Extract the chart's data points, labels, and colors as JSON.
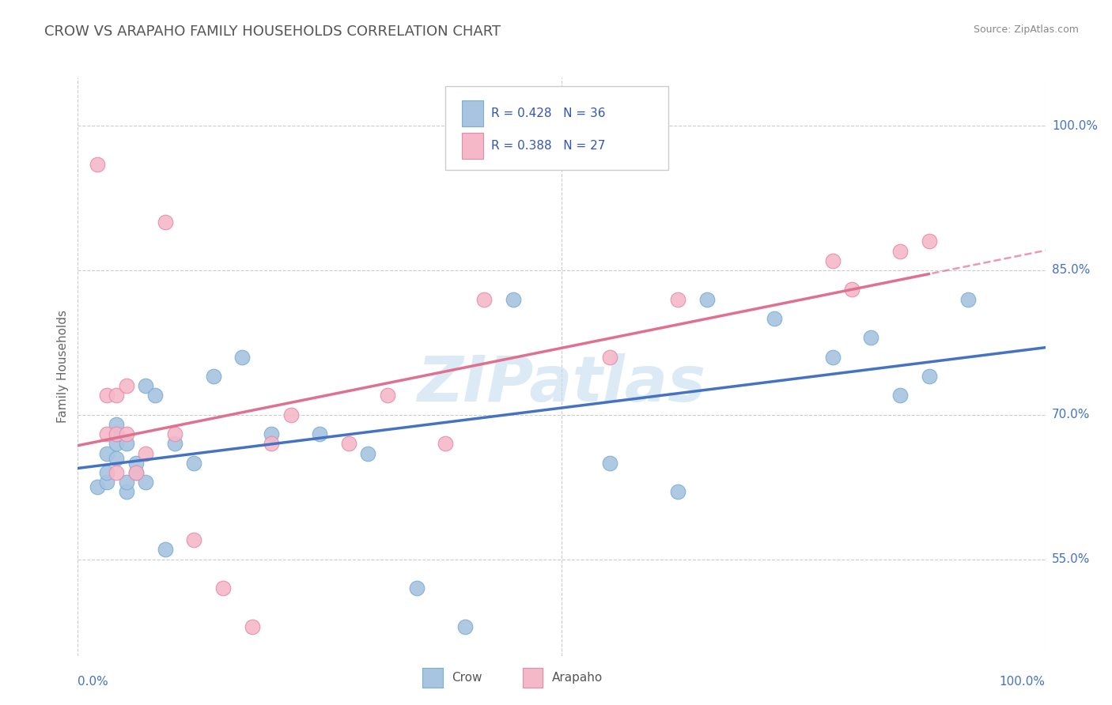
{
  "title": "CROW VS ARAPAHO FAMILY HOUSEHOLDS CORRELATION CHART",
  "source": "Source: ZipAtlas.com",
  "ylabel": "Family Households",
  "xlim": [
    0.0,
    1.0
  ],
  "ylim": [
    0.45,
    1.05
  ],
  "y_ticks": [
    0.55,
    0.7,
    0.85,
    1.0
  ],
  "y_tick_labels": [
    "55.0%",
    "70.0%",
    "85.0%",
    "100.0%"
  ],
  "x_tick_labels_pos": [
    0.0,
    1.0
  ],
  "x_tick_labels": [
    "0.0%",
    "100.0%"
  ],
  "crow_color": "#a8c4e0",
  "crow_edge": "#7aafd4",
  "arapaho_color": "#f4b8c8",
  "arapaho_edge": "#e88aaa",
  "crow_line_color": "#4472c4",
  "arapaho_line_color": "#e07090",
  "crow_R": 0.428,
  "crow_N": 36,
  "arapaho_R": 0.388,
  "arapaho_N": 27,
  "legend_color": "#3355bb",
  "watermark": "ZIPatlas",
  "background_color": "#ffffff",
  "grid_color": "#cccccc",
  "crow_scatter_x": [
    0.02,
    0.03,
    0.03,
    0.03,
    0.04,
    0.04,
    0.04,
    0.04,
    0.05,
    0.05,
    0.05,
    0.06,
    0.06,
    0.07,
    0.07,
    0.08,
    0.09,
    0.1,
    0.12,
    0.14,
    0.17,
    0.2,
    0.25,
    0.3,
    0.35,
    0.4,
    0.45,
    0.55,
    0.62,
    0.65,
    0.72,
    0.78,
    0.82,
    0.85,
    0.88,
    0.92
  ],
  "crow_scatter_y": [
    0.625,
    0.63,
    0.64,
    0.66,
    0.655,
    0.67,
    0.68,
    0.69,
    0.62,
    0.63,
    0.67,
    0.64,
    0.65,
    0.63,
    0.73,
    0.72,
    0.56,
    0.67,
    0.65,
    0.74,
    0.76,
    0.68,
    0.68,
    0.66,
    0.52,
    0.48,
    0.82,
    0.65,
    0.62,
    0.82,
    0.8,
    0.76,
    0.78,
    0.72,
    0.74,
    0.82
  ],
  "arapaho_scatter_x": [
    0.02,
    0.03,
    0.03,
    0.04,
    0.04,
    0.04,
    0.05,
    0.05,
    0.06,
    0.07,
    0.09,
    0.1,
    0.12,
    0.15,
    0.18,
    0.2,
    0.22,
    0.28,
    0.32,
    0.38,
    0.42,
    0.55,
    0.62,
    0.78,
    0.8,
    0.85,
    0.88
  ],
  "arapaho_scatter_y": [
    0.96,
    0.72,
    0.68,
    0.72,
    0.68,
    0.64,
    0.73,
    0.68,
    0.64,
    0.66,
    0.9,
    0.68,
    0.57,
    0.52,
    0.48,
    0.67,
    0.7,
    0.67,
    0.72,
    0.67,
    0.82,
    0.76,
    0.82,
    0.86,
    0.83,
    0.87,
    0.88
  ]
}
